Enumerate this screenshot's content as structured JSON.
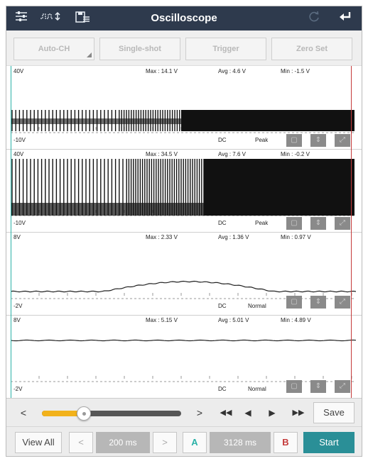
{
  "titlebar": {
    "title": "Oscilloscope",
    "icons": [
      "settings-sliders-icon",
      "waveform-icon",
      "save-file-icon",
      "refresh-icon",
      "back-arrow-icon"
    ]
  },
  "modes": {
    "auto_ch": "Auto-CH",
    "single_shot": "Single-shot",
    "trigger": "Trigger",
    "zero_set": "Zero Set"
  },
  "channels": [
    {
      "top": "40V",
      "bottom": "-10V",
      "max": "Max : 14.1 V",
      "avg": "Avg : 4.6 V",
      "min": "Min : -1.5 V",
      "coupling": "DC",
      "mode": "Peak"
    },
    {
      "top": "40V",
      "bottom": "-10V",
      "max": "Max : 34.5 V",
      "avg": "Avg : 7.6 V",
      "min": "Min : -0.2 V",
      "coupling": "DC",
      "mode": "Peak"
    },
    {
      "top": "8V",
      "bottom": "-2V",
      "max": "Max : 2.33 V",
      "avg": "Avg : 1.36 V",
      "min": "Min : 0.97 V",
      "coupling": "DC",
      "mode": "Normal"
    },
    {
      "top": "8V",
      "bottom": "-2V",
      "max": "Max : 5.15 V",
      "avg": "Avg : 5.01 V",
      "min": "Min : 4.89 V",
      "coupling": "DC",
      "mode": "Normal"
    }
  ],
  "playback": {
    "prev": "<",
    "next": ">",
    "fast_back": "◀◀",
    "back": "◀",
    "forward": "▶",
    "fast_forward": "▶▶",
    "save": "Save",
    "position_fraction": 0.3
  },
  "controls": {
    "view_all": "View All",
    "prev": "<",
    "timebase": "200 ms",
    "next": ">",
    "cursor_a": "A",
    "cursor_delta": "3128 ms",
    "cursor_b": "B",
    "start": "Start"
  },
  "colors": {
    "titlebar": "#2e3a4d",
    "cursor_a": "#2bb2a8",
    "cursor_b": "#c43a3a",
    "slider_fill": "#f2b21b",
    "start_button": "#2a8f97"
  }
}
